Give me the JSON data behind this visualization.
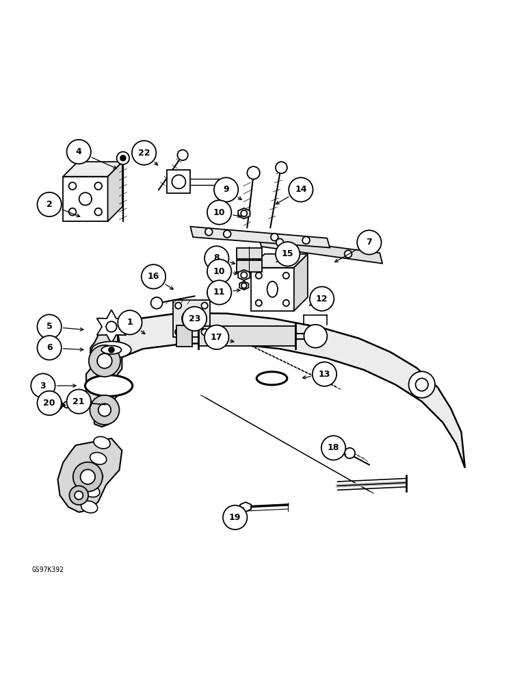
{
  "bg_color": "#ffffff",
  "line_color": "#000000",
  "watermark": "GS97K392",
  "figsize": [
    7.72,
    10.0
  ],
  "dpi": 100,
  "callouts": [
    [
      1,
      0.245,
      0.538,
      0.278,
      0.513
    ],
    [
      2,
      0.092,
      0.762,
      0.155,
      0.737
    ],
    [
      3,
      0.08,
      0.418,
      0.148,
      0.418
    ],
    [
      4,
      0.148,
      0.862,
      0.225,
      0.828
    ],
    [
      5,
      0.092,
      0.53,
      0.162,
      0.524
    ],
    [
      6,
      0.092,
      0.49,
      0.162,
      0.486
    ],
    [
      7,
      0.7,
      0.69,
      0.63,
      0.65
    ],
    [
      8,
      0.41,
      0.66,
      0.45,
      0.648
    ],
    [
      9,
      0.428,
      0.79,
      0.462,
      0.768
    ],
    [
      10,
      0.415,
      0.747,
      0.462,
      0.738
    ],
    [
      10,
      0.415,
      0.635,
      0.455,
      0.63
    ],
    [
      11,
      0.415,
      0.595,
      0.46,
      0.6
    ],
    [
      12,
      0.61,
      0.583,
      0.582,
      0.568
    ],
    [
      13,
      0.615,
      0.44,
      0.568,
      0.432
    ],
    [
      14,
      0.57,
      0.79,
      0.518,
      0.76
    ],
    [
      15,
      0.545,
      0.668,
      0.52,
      0.65
    ],
    [
      16,
      0.29,
      0.625,
      0.332,
      0.598
    ],
    [
      17,
      0.41,
      0.51,
      0.448,
      0.5
    ],
    [
      18,
      0.632,
      0.3,
      0.66,
      0.285
    ],
    [
      19,
      0.445,
      0.168,
      0.462,
      0.188
    ],
    [
      20,
      0.092,
      0.385,
      0.128,
      0.38
    ],
    [
      21,
      0.148,
      0.388,
      0.165,
      0.385
    ],
    [
      22,
      0.272,
      0.86,
      0.302,
      0.833
    ],
    [
      23,
      0.368,
      0.545,
      0.388,
      0.52
    ]
  ]
}
